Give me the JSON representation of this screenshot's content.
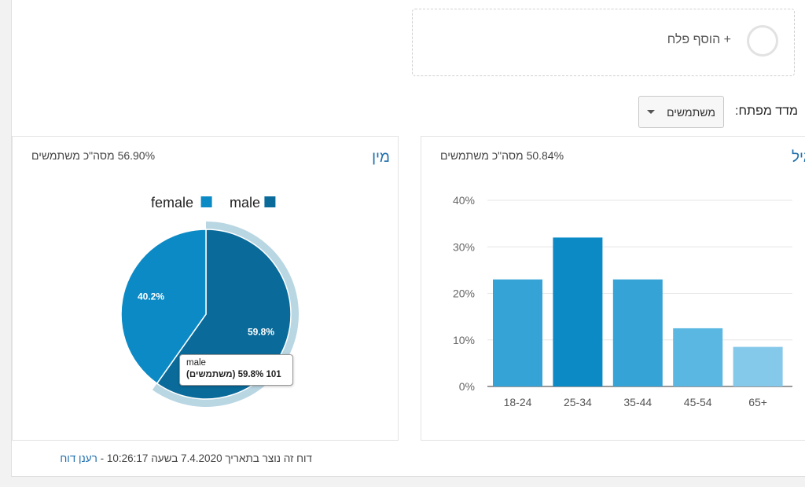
{
  "add_segment": {
    "label": "+ הוסף פלח"
  },
  "metric": {
    "label": "מדד מפתח:",
    "selected": "משתמשים"
  },
  "gender_card": {
    "title": "מין",
    "summary": "56.90% מסה\"כ משתמשים",
    "tooltip": {
      "line1": "male",
      "line2": "101 59.8% (משתמשים)"
    }
  },
  "age_card": {
    "title": "גיל",
    "summary": "50.84% מסה\"כ משתמשים"
  },
  "footer": {
    "text": "דוח זה נוצר בתאריך 7.4.2020 בשעה 10:26:17 - ",
    "refresh": "רענן דוח"
  },
  "colors": {
    "male": "#0a6b9a",
    "female": "#0b8ac6",
    "highlight_ring": "#b9d6e3",
    "bar_18_24": "#36a3d6",
    "bar_25_34": "#0b8ac6",
    "bar_35_44": "#36a3d6",
    "bar_45_54": "#5ab7e2",
    "bar_65": "#85c9ea"
  },
  "chart_data": [
    {
      "type": "pie",
      "slices": [
        {
          "label": "male",
          "value": 59.8,
          "data_label": "59.8%"
        },
        {
          "label": "female",
          "value": 40.2,
          "data_label": "40.2%"
        }
      ],
      "legend": [
        "male",
        "female"
      ],
      "legend_position": "top"
    },
    {
      "type": "bar",
      "categories": [
        "18-24",
        "25-34",
        "35-44",
        "45-54",
        "65+"
      ],
      "values": [
        23,
        32,
        23,
        12.5,
        8.5
      ],
      "yticks": [
        "0%",
        "10%",
        "20%",
        "30%",
        "40%"
      ],
      "ylim": [
        0,
        40
      ],
      "grid": true
    }
  ]
}
